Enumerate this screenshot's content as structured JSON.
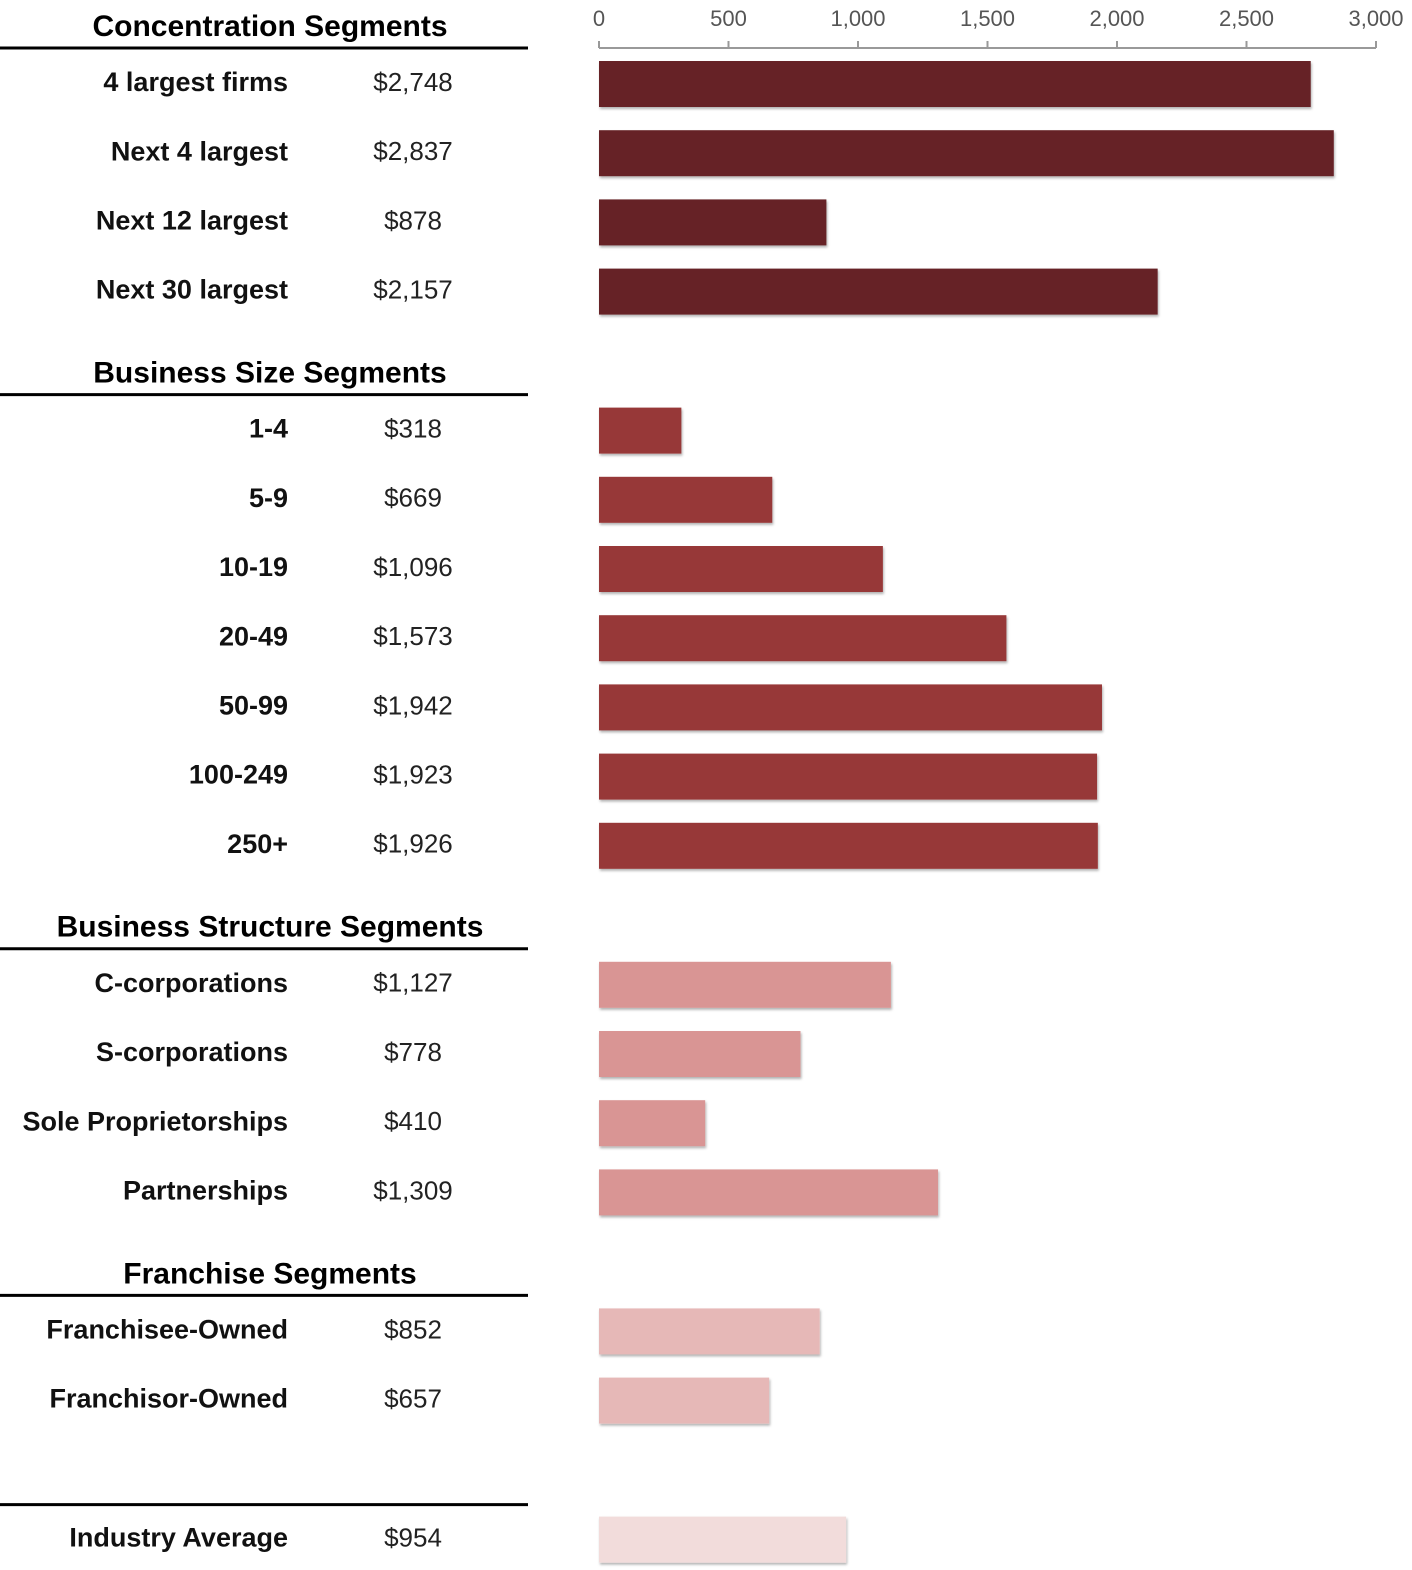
{
  "chart_data": {
    "type": "bar",
    "xlim": [
      0,
      3000
    ],
    "xticks": [
      0,
      500,
      {
        "value": 1000,
        "label": "1,000"
      },
      {
        "value": 1500,
        "label": "1,500"
      },
      {
        "value": 2000,
        "label": "2,000"
      },
      {
        "value": 2500,
        "label": "2,500"
      },
      {
        "value": 3000,
        "label": "3,000"
      }
    ],
    "groups": [
      {
        "title": "Concentration Segments",
        "color": "#662427",
        "categories": [
          "4 largest firms",
          "Next 4 largest",
          "Next 12 largest",
          "Next 30 largest"
        ],
        "values": [
          2748,
          2837,
          878,
          2157
        ],
        "value_labels": [
          "$2,748",
          "$2,837",
          "$878",
          "$2,157"
        ]
      },
      {
        "title": "Business Size Segments",
        "color": "#973838",
        "categories": [
          "1-4",
          "5-9",
          "10-19",
          "20-49",
          "50-99",
          "100-249",
          "250+"
        ],
        "values": [
          318,
          669,
          1096,
          1573,
          1942,
          1923,
          1926
        ],
        "value_labels": [
          "$318",
          "$669",
          "$1,096",
          "$1,573",
          "$1,942",
          "$1,923",
          "$1,926"
        ]
      },
      {
        "title": "Business Structure Segments",
        "color": "#d99594",
        "categories": [
          "C-corporations",
          "S-corporations",
          "Sole Proprietorships",
          "Partnerships"
        ],
        "values": [
          1127,
          778,
          410,
          1309
        ],
        "value_labels": [
          "$1,127",
          "$778",
          "$410",
          "$1,309"
        ]
      },
      {
        "title": "Franchise Segments",
        "color": "#e6b8b7",
        "categories": [
          "Franchisee-Owned",
          "Franchisor-Owned"
        ],
        "values": [
          852,
          657
        ],
        "value_labels": [
          "$852",
          "$657"
        ]
      },
      {
        "color": "#f2dcdb",
        "categories": [
          "Industry Average"
        ],
        "values": [
          954
        ],
        "value_labels": [
          "$954"
        ]
      }
    ]
  }
}
